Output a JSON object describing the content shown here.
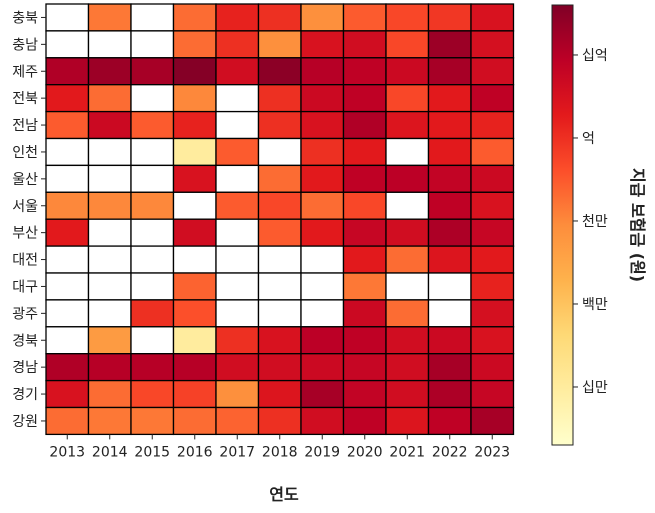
{
  "chart_data": {
    "type": "heatmap",
    "xlabel": "연도",
    "colorbar_label": "지급 보험금 (원)",
    "x_categories": [
      "2013",
      "2014",
      "2015",
      "2016",
      "2017",
      "2018",
      "2019",
      "2020",
      "2021",
      "2022",
      "2023"
    ],
    "y_categories": [
      "충북",
      "충남",
      "제주",
      "전북",
      "전남",
      "인천",
      "울산",
      "서울",
      "부산",
      "대전",
      "대구",
      "광주",
      "경북",
      "경남",
      "경기",
      "강원"
    ],
    "scale": "log",
    "colormap": "YlOrRd",
    "colorbar_ticks": [
      {
        "label": "십만",
        "value": 100000
      },
      {
        "label": "백만",
        "value": 1000000
      },
      {
        "label": "천만",
        "value": 10000000
      },
      {
        "label": "억",
        "value": 100000000
      },
      {
        "label": "십억",
        "value": 1000000000
      }
    ],
    "colorbar_range": [
      20000,
      4000000000
    ],
    "missing_color": "#ffffff",
    "values": [
      [
        null,
        15000000,
        null,
        20000000,
        150000000,
        100000000,
        8000000,
        30000000,
        50000000,
        80000000,
        300000000
      ],
      [
        null,
        null,
        null,
        20000000,
        100000000,
        8000000,
        300000000,
        400000000,
        50000000,
        2000000000,
        350000000
      ],
      [
        1200000000,
        2000000000,
        1500000000,
        3500000000,
        400000000,
        3000000000,
        1000000000,
        800000000,
        500000000,
        1500000000,
        400000000
      ],
      [
        200000000,
        20000000,
        null,
        10000000,
        null,
        100000000,
        500000000,
        800000000,
        50000000,
        200000000,
        800000000
      ],
      [
        30000000,
        500000000,
        30000000,
        150000000,
        null,
        100000000,
        300000000,
        1200000000,
        250000000,
        200000000,
        150000000
      ],
      [
        null,
        null,
        null,
        100000,
        30000000,
        null,
        100000000,
        200000000,
        null,
        200000000,
        30000000
      ],
      [
        null,
        null,
        null,
        300000000,
        null,
        20000000,
        200000000,
        800000000,
        900000000,
        700000000,
        500000000
      ],
      [
        10000000,
        10000000,
        10000000,
        null,
        30000000,
        50000000,
        20000000,
        50000000,
        null,
        800000000,
        300000000
      ],
      [
        200000000,
        null,
        null,
        400000000,
        null,
        30000000,
        200000000,
        600000000,
        400000000,
        1300000000,
        600000000
      ],
      [
        null,
        null,
        null,
        null,
        null,
        null,
        null,
        200000000,
        20000000,
        250000000,
        200000000
      ],
      [
        null,
        null,
        null,
        25000000,
        null,
        null,
        null,
        15000000,
        null,
        null,
        150000000
      ],
      [
        null,
        null,
        100000000,
        40000000,
        null,
        null,
        null,
        500000000,
        20000000,
        null,
        350000000
      ],
      [
        null,
        5000000,
        null,
        100000,
        100000000,
        300000000,
        900000000,
        800000000,
        400000000,
        500000000,
        300000000
      ],
      [
        1200000000,
        1000000000,
        1000000000,
        1000000000,
        400000000,
        400000000,
        500000000,
        600000000,
        400000000,
        1500000000,
        500000000
      ],
      [
        300000000,
        20000000,
        50000000,
        60000000,
        8000000,
        250000000,
        1500000000,
        700000000,
        400000000,
        1300000000,
        600000000
      ],
      [
        20000000,
        15000000,
        15000000,
        20000000,
        25000000,
        100000000,
        400000000,
        800000000,
        250000000,
        800000000,
        1500000000
      ]
    ]
  }
}
